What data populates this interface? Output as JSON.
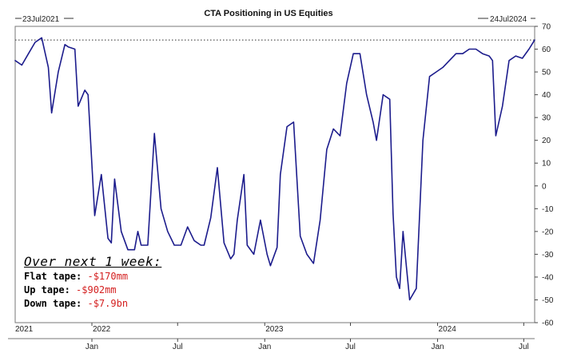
{
  "chart_data": {
    "type": "line",
    "title": "CTA Positioning in US Equities",
    "start_label": "23Jul2021",
    "end_label": "24Jul2024",
    "ylim": [
      -60,
      70
    ],
    "y_ticks": [
      70,
      60,
      50,
      40,
      30,
      20,
      10,
      0,
      -10,
      -20,
      -30,
      -40,
      -50,
      -60
    ],
    "y_axis_side": "right",
    "reference_line": 64,
    "x_month_labels": [
      {
        "label": "Jan",
        "date": "2022-01-01"
      },
      {
        "label": "Jul",
        "date": "2022-07-01"
      },
      {
        "label": "Jan",
        "date": "2023-01-01"
      },
      {
        "label": "Jul",
        "date": "2023-07-01"
      },
      {
        "label": "Jan",
        "date": "2024-01-01"
      },
      {
        "label": "Jul",
        "date": "2024-07-01"
      }
    ],
    "x_year_labels": [
      {
        "label": "2021",
        "date": "2021-07-23"
      },
      {
        "label": "2022",
        "date": "2022-01-01"
      },
      {
        "label": "2023",
        "date": "2023-01-01"
      },
      {
        "label": "2024",
        "date": "2024-01-01"
      }
    ],
    "series": [
      {
        "color": "#1c1c8c",
        "x": [
          "2021-07-23",
          "2021-08-06",
          "2021-08-20",
          "2021-09-03",
          "2021-09-17",
          "2021-10-01",
          "2021-10-08",
          "2021-10-22",
          "2021-11-05",
          "2021-11-12",
          "2021-11-26",
          "2021-12-03",
          "2021-12-17",
          "2021-12-24",
          "2022-01-07",
          "2022-01-21",
          "2022-02-04",
          "2022-02-11",
          "2022-02-18",
          "2022-03-04",
          "2022-03-18",
          "2022-04-01",
          "2022-04-08",
          "2022-04-15",
          "2022-04-29",
          "2022-05-13",
          "2022-05-27",
          "2022-06-10",
          "2022-06-24",
          "2022-07-08",
          "2022-07-22",
          "2022-08-05",
          "2022-08-19",
          "2022-08-26",
          "2022-09-09",
          "2022-09-23",
          "2022-10-07",
          "2022-10-21",
          "2022-10-28",
          "2022-11-04",
          "2022-11-18",
          "2022-11-25",
          "2022-12-09",
          "2022-12-23",
          "2023-01-06",
          "2023-01-13",
          "2023-01-27",
          "2023-02-03",
          "2023-02-17",
          "2023-03-03",
          "2023-03-17",
          "2023-03-31",
          "2023-04-14",
          "2023-04-28",
          "2023-05-12",
          "2023-05-26",
          "2023-06-09",
          "2023-06-23",
          "2023-07-07",
          "2023-07-21",
          "2023-08-04",
          "2023-08-18",
          "2023-08-25",
          "2023-09-08",
          "2023-09-22",
          "2023-09-29",
          "2023-10-06",
          "2023-10-13",
          "2023-10-20",
          "2023-10-27",
          "2023-11-03",
          "2023-11-17",
          "2023-12-01",
          "2023-12-15",
          "2023-12-29",
          "2024-01-12",
          "2024-01-26",
          "2024-02-09",
          "2024-02-23",
          "2024-03-08",
          "2024-03-22",
          "2024-04-05",
          "2024-04-19",
          "2024-04-26",
          "2024-05-03",
          "2024-05-17",
          "2024-05-31",
          "2024-06-14",
          "2024-06-28",
          "2024-07-12",
          "2024-07-24"
        ],
        "values": [
          55,
          53,
          58,
          63,
          65,
          52,
          32,
          50,
          62,
          61,
          60,
          35,
          42,
          40,
          -13,
          5,
          -23,
          -25,
          3,
          -20,
          -28,
          -28,
          -20,
          -26,
          -26,
          23,
          -10,
          -20,
          -26,
          -26,
          -18,
          -24,
          -26,
          -26,
          -14,
          8,
          -25,
          -32,
          -30,
          -15,
          5,
          -26,
          -30,
          -15,
          -30,
          -35,
          -27,
          5,
          26,
          28,
          -22,
          -30,
          -34,
          -15,
          16,
          25,
          22,
          45,
          58,
          58,
          40,
          28,
          20,
          40,
          38,
          -12,
          -40,
          -45,
          -20,
          -35,
          -50,
          -45,
          20,
          48,
          50,
          52,
          55,
          58,
          58,
          60,
          60,
          58,
          57,
          55,
          22,
          35,
          55,
          57,
          56,
          60,
          64
        ]
      }
    ]
  },
  "annotation": {
    "heading": "Over next 1 week:",
    "rows": [
      {
        "label": "Flat tape:",
        "value": "-$170mm"
      },
      {
        "label": "Up tape:",
        "value": "-$902mm"
      },
      {
        "label": "Down tape:",
        "value": "-$7.9bn"
      }
    ]
  }
}
